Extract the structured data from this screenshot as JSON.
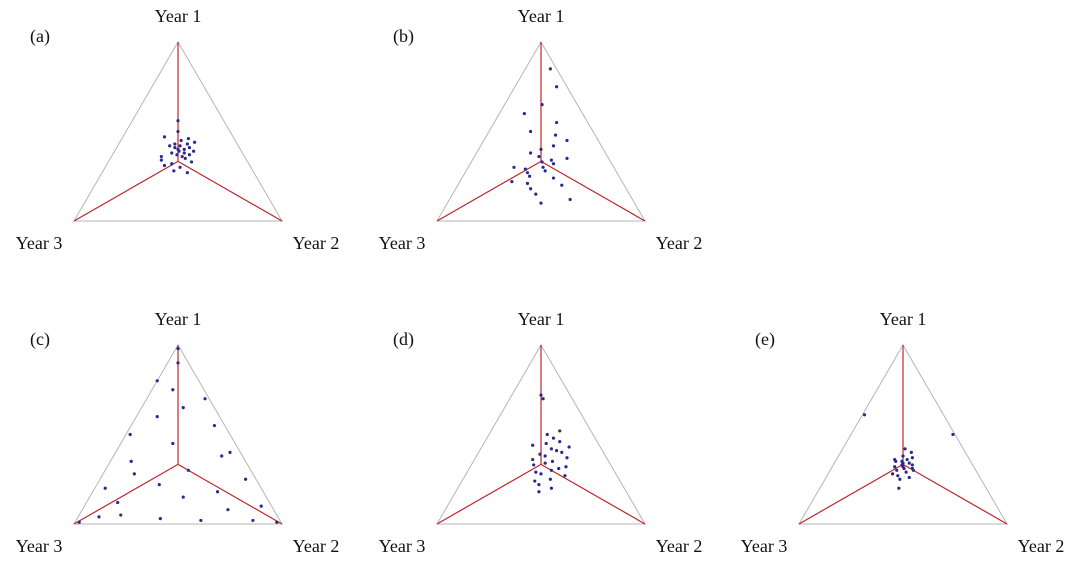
{
  "chart_data": [
    {
      "type": "ternary",
      "title": "(a)",
      "axis_labels": [
        "Year 1",
        "Year 2",
        "Year 3"
      ],
      "color": "#2b2a8c",
      "points": [
        [
          0.39,
          0.31,
          0.3
        ],
        [
          0.42,
          0.3,
          0.28
        ],
        [
          0.36,
          0.34,
          0.3
        ],
        [
          0.4,
          0.33,
          0.27
        ],
        [
          0.45,
          0.29,
          0.26
        ],
        [
          0.38,
          0.28,
          0.34
        ],
        [
          0.35,
          0.36,
          0.29
        ],
        [
          0.43,
          0.27,
          0.3
        ],
        [
          0.37,
          0.31,
          0.32
        ],
        [
          0.41,
          0.35,
          0.24
        ],
        [
          0.5,
          0.25,
          0.25
        ],
        [
          0.56,
          0.22,
          0.22
        ],
        [
          0.33,
          0.4,
          0.27
        ],
        [
          0.34,
          0.25,
          0.41
        ],
        [
          0.47,
          0.2,
          0.33
        ],
        [
          0.39,
          0.38,
          0.23
        ],
        [
          0.3,
          0.36,
          0.34
        ],
        [
          0.28,
          0.34,
          0.38
        ],
        [
          0.44,
          0.36,
          0.2
        ],
        [
          0.36,
          0.24,
          0.4
        ],
        [
          0.4,
          0.3,
          0.3
        ],
        [
          0.38,
          0.34,
          0.28
        ],
        [
          0.42,
          0.25,
          0.33
        ],
        [
          0.32,
          0.31,
          0.37
        ],
        [
          0.46,
          0.32,
          0.22
        ],
        [
          0.27,
          0.41,
          0.32
        ],
        [
          0.37,
          0.37,
          0.26
        ],
        [
          0.43,
          0.33,
          0.24
        ],
        [
          0.31,
          0.28,
          0.41
        ],
        [
          0.41,
          0.28,
          0.31
        ]
      ]
    },
    {
      "type": "ternary",
      "title": "(b)",
      "axis_labels": [
        "Year 1",
        "Year 2",
        "Year 3"
      ],
      "color": "#2b2a8c",
      "points": [
        [
          0.33,
          0.34,
          0.33
        ],
        [
          0.3,
          0.36,
          0.34
        ],
        [
          0.36,
          0.31,
          0.33
        ],
        [
          0.28,
          0.38,
          0.34
        ],
        [
          0.4,
          0.3,
          0.3
        ],
        [
          0.25,
          0.32,
          0.43
        ],
        [
          0.5,
          0.2,
          0.3
        ],
        [
          0.55,
          0.3,
          0.15
        ],
        [
          0.85,
          0.12,
          0.03
        ],
        [
          0.75,
          0.2,
          0.05
        ],
        [
          0.6,
          0.12,
          0.28
        ],
        [
          0.45,
          0.4,
          0.15
        ],
        [
          0.2,
          0.5,
          0.3
        ],
        [
          0.15,
          0.4,
          0.45
        ],
        [
          0.1,
          0.45,
          0.45
        ],
        [
          0.22,
          0.25,
          0.53
        ],
        [
          0.35,
          0.45,
          0.2
        ],
        [
          0.3,
          0.22,
          0.48
        ],
        [
          0.42,
          0.35,
          0.23
        ],
        [
          0.27,
          0.3,
          0.43
        ],
        [
          0.18,
          0.36,
          0.46
        ],
        [
          0.38,
          0.26,
          0.36
        ],
        [
          0.32,
          0.4,
          0.28
        ],
        [
          0.48,
          0.33,
          0.19
        ],
        [
          0.24,
          0.44,
          0.32
        ],
        [
          0.12,
          0.58,
          0.3
        ],
        [
          0.65,
          0.18,
          0.17
        ],
        [
          0.29,
          0.28,
          0.43
        ],
        [
          0.34,
          0.38,
          0.28
        ],
        [
          0.21,
          0.33,
          0.46
        ]
      ]
    },
    {
      "type": "ternary",
      "title": "(c)",
      "axis_labels": [
        "Year 1",
        "Year 2",
        "Year 3"
      ],
      "color": "#2b2a8c",
      "points": [
        [
          0.98,
          0.01,
          0.01
        ],
        [
          0.9,
          0.05,
          0.05
        ],
        [
          0.8,
          0.0,
          0.2
        ],
        [
          0.7,
          0.28,
          0.02
        ],
        [
          0.6,
          0.1,
          0.3
        ],
        [
          0.55,
          0.4,
          0.05
        ],
        [
          0.5,
          0.02,
          0.48
        ],
        [
          0.45,
          0.25,
          0.3
        ],
        [
          0.4,
          0.55,
          0.05
        ],
        [
          0.35,
          0.1,
          0.55
        ],
        [
          0.3,
          0.4,
          0.3
        ],
        [
          0.25,
          0.7,
          0.05
        ],
        [
          0.2,
          0.05,
          0.75
        ],
        [
          0.15,
          0.45,
          0.4
        ],
        [
          0.1,
          0.85,
          0.05
        ],
        [
          0.05,
          0.2,
          0.75
        ],
        [
          0.02,
          0.6,
          0.38
        ],
        [
          0.01,
          0.97,
          0.02
        ],
        [
          0.01,
          0.02,
          0.97
        ],
        [
          0.03,
          0.4,
          0.57
        ],
        [
          0.08,
          0.7,
          0.22
        ],
        [
          0.12,
          0.15,
          0.73
        ],
        [
          0.18,
          0.6,
          0.22
        ],
        [
          0.22,
          0.3,
          0.48
        ],
        [
          0.65,
          0.2,
          0.15
        ],
        [
          0.75,
          0.1,
          0.15
        ],
        [
          0.02,
          0.85,
          0.13
        ],
        [
          0.04,
          0.1,
          0.86
        ],
        [
          0.28,
          0.15,
          0.57
        ],
        [
          0.38,
          0.52,
          0.1
        ]
      ]
    },
    {
      "type": "ternary",
      "title": "(d)",
      "axis_labels": [
        "Year 1",
        "Year 2",
        "Year 3"
      ],
      "color": "#2b2a8c",
      "points": [
        [
          0.38,
          0.33,
          0.29
        ],
        [
          0.42,
          0.34,
          0.24
        ],
        [
          0.35,
          0.38,
          0.27
        ],
        [
          0.45,
          0.3,
          0.25
        ],
        [
          0.3,
          0.4,
          0.3
        ],
        [
          0.28,
          0.36,
          0.36
        ],
        [
          0.4,
          0.4,
          0.2
        ],
        [
          0.48,
          0.32,
          0.2
        ],
        [
          0.33,
          0.3,
          0.37
        ],
        [
          0.25,
          0.42,
          0.33
        ],
        [
          0.37,
          0.44,
          0.19
        ],
        [
          0.44,
          0.24,
          0.32
        ],
        [
          0.22,
          0.38,
          0.4
        ],
        [
          0.2,
          0.45,
          0.35
        ],
        [
          0.5,
          0.28,
          0.22
        ],
        [
          0.32,
          0.46,
          0.22
        ],
        [
          0.36,
          0.28,
          0.36
        ],
        [
          0.27,
          0.48,
          0.25
        ],
        [
          0.72,
          0.14,
          0.14
        ],
        [
          0.7,
          0.16,
          0.14
        ],
        [
          0.41,
          0.37,
          0.22
        ],
        [
          0.46,
          0.36,
          0.18
        ],
        [
          0.29,
          0.33,
          0.38
        ],
        [
          0.34,
          0.35,
          0.31
        ],
        [
          0.39,
          0.3,
          0.31
        ],
        [
          0.24,
          0.35,
          0.41
        ],
        [
          0.43,
          0.42,
          0.15
        ],
        [
          0.31,
          0.43,
          0.26
        ],
        [
          0.18,
          0.4,
          0.42
        ],
        [
          0.52,
          0.33,
          0.15
        ]
      ]
    },
    {
      "type": "ternary",
      "title": "(e)",
      "axis_labels": [
        "Year 1",
        "Year 2",
        "Year 3"
      ],
      "color": "#2b2a8c",
      "points": [
        [
          0.33,
          0.33,
          0.34
        ],
        [
          0.35,
          0.32,
          0.33
        ],
        [
          0.31,
          0.35,
          0.34
        ],
        [
          0.34,
          0.36,
          0.3
        ],
        [
          0.3,
          0.32,
          0.38
        ],
        [
          0.36,
          0.34,
          0.3
        ],
        [
          0.32,
          0.3,
          0.38
        ],
        [
          0.38,
          0.31,
          0.31
        ],
        [
          0.29,
          0.37,
          0.34
        ],
        [
          0.33,
          0.38,
          0.29
        ],
        [
          0.27,
          0.34,
          0.39
        ],
        [
          0.4,
          0.34,
          0.26
        ],
        [
          0.35,
          0.29,
          0.36
        ],
        [
          0.31,
          0.39,
          0.3
        ],
        [
          0.25,
          0.36,
          0.39
        ],
        [
          0.37,
          0.36,
          0.27
        ],
        [
          0.28,
          0.31,
          0.41
        ],
        [
          0.34,
          0.33,
          0.33
        ],
        [
          0.42,
          0.3,
          0.28
        ],
        [
          0.2,
          0.38,
          0.42
        ],
        [
          0.32,
          0.34,
          0.34
        ],
        [
          0.3,
          0.4,
          0.3
        ],
        [
          0.36,
          0.28,
          0.36
        ],
        [
          0.61,
          0.01,
          0.38
        ],
        [
          0.5,
          0.49,
          0.01
        ],
        [
          0.26,
          0.4,
          0.34
        ]
      ]
    }
  ]
}
